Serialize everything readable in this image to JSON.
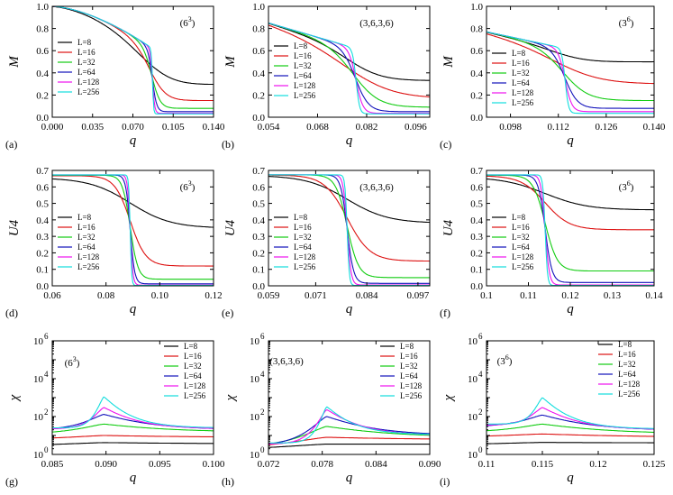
{
  "colors": {
    "L=8": "#000000",
    "L=16": "#dd1111",
    "L=32": "#11cc11",
    "L=64": "#1111bb",
    "L=128": "#ee11ee",
    "L=256": "#11dddd"
  },
  "legend": [
    "L=8",
    "L=16",
    "L=32",
    "L=64",
    "L=128",
    "L=256"
  ],
  "chart_data": [
    {
      "id": "a",
      "type": "line",
      "lattice": "(6^3)",
      "lattice_base": "(6",
      "lattice_exp": "3",
      "lattice_close": ")",
      "panel_label": "(a)",
      "xlabel": "q",
      "ylabel": "M",
      "yscale": "linear",
      "xlim": [
        0,
        0.14
      ],
      "ylim": [
        0,
        1.0
      ],
      "xticks": [
        0,
        0.035,
        0.07,
        0.105,
        0.14
      ],
      "xticklabels": [
        "0.000",
        "0.035",
        "0.070",
        "0.105",
        "0.140"
      ],
      "yticks": [
        0,
        0.2,
        0.4,
        0.6,
        0.8,
        1.0
      ],
      "yticklabels": [
        "0.0",
        "0.2",
        "0.4",
        "0.6",
        "0.8",
        "1.0"
      ],
      "qc": 0.087,
      "curve_kind": "M",
      "a0": 1.0,
      "x0": 0.05,
      "a1": 0.88,
      "x1": 0.14,
      "tail": [
        0.3,
        0.15,
        0.08,
        0.05,
        0.035,
        0.03
      ]
    },
    {
      "id": "b",
      "type": "line",
      "lattice": "(3,6,3,6)",
      "panel_label": "(b)",
      "xlabel": "q",
      "ylabel": "M",
      "yscale": "linear",
      "xlim": [
        0.054,
        0.1
      ],
      "ylim": [
        0,
        1.0
      ],
      "xticks": [
        0.054,
        0.068,
        0.082,
        0.096
      ],
      "xticklabels": [
        "0.054",
        "0.068",
        "0.082",
        "0.096"
      ],
      "yticks": [
        0,
        0.2,
        0.4,
        0.6,
        0.8,
        1.0
      ],
      "yticklabels": [
        "0.0",
        "0.2",
        "0.4",
        "0.6",
        "0.8",
        "1.0"
      ],
      "qc": 0.079,
      "curve_kind": "M",
      "a0": 0.85,
      "x0": 0.054,
      "a1": 0.85,
      "x1": 0.1,
      "tail": [
        0.33,
        0.17,
        0.09,
        0.05,
        0.035,
        0.03
      ]
    },
    {
      "id": "c",
      "type": "line",
      "lattice": "(3^6)",
      "lattice_base": "(3",
      "lattice_exp": "6",
      "lattice_close": ")",
      "panel_label": "(c)",
      "xlabel": "q",
      "ylabel": "M",
      "yscale": "linear",
      "xlim": [
        0.091,
        0.14
      ],
      "ylim": [
        0,
        1.0
      ],
      "xticks": [
        0.098,
        0.112,
        0.126,
        0.14
      ],
      "xticklabels": [
        "0.098",
        "0.112",
        "0.126",
        "0.140"
      ],
      "yticks": [
        0,
        0.2,
        0.4,
        0.6,
        0.8,
        1.0
      ],
      "yticklabels": [
        "0.0",
        "0.2",
        "0.4",
        "0.6",
        "0.8",
        "1.0"
      ],
      "qc": 0.114,
      "curve_kind": "M",
      "a0": 0.77,
      "x0": 0.091,
      "a1": 0.77,
      "x1": 0.14,
      "tail": [
        0.5,
        0.3,
        0.15,
        0.08,
        0.05,
        0.035
      ]
    },
    {
      "id": "d",
      "type": "line",
      "lattice": "(6^3)",
      "lattice_base": "(6",
      "lattice_exp": "3",
      "lattice_close": ")",
      "panel_label": "(d)",
      "xlabel": "q",
      "ylabel": "U4",
      "yscale": "linear",
      "xlim": [
        0.06,
        0.12
      ],
      "ylim": [
        0,
        0.7
      ],
      "xticks": [
        0.06,
        0.08,
        0.1,
        0.12
      ],
      "xticklabels": [
        "0.06",
        "0.08",
        "0.10",
        "0.12"
      ],
      "yticks": [
        0,
        0.1,
        0.2,
        0.3,
        0.4,
        0.5,
        0.6,
        0.7
      ],
      "yticklabels": [
        "0.0",
        "0.1",
        "0.2",
        "0.3",
        "0.4",
        "0.5",
        "0.6",
        "0.7"
      ],
      "qc": 0.089,
      "cross": 0.61,
      "curve_kind": "U",
      "u0": [
        0.655,
        0.668,
        0.671,
        0.672,
        0.673,
        0.673
      ],
      "tail": [
        0.35,
        0.12,
        0.04,
        0.012,
        0.004,
        0.002
      ]
    },
    {
      "id": "e",
      "type": "line",
      "lattice": "(3,6,3,6)",
      "panel_label": "(e)",
      "xlabel": "q",
      "ylabel": "U4",
      "yscale": "linear",
      "xlim": [
        0.059,
        0.1
      ],
      "ylim": [
        0,
        0.7
      ],
      "xticks": [
        0.059,
        0.071,
        0.084,
        0.097
      ],
      "xticklabels": [
        "0.059",
        "0.071",
        "0.084",
        "0.097"
      ],
      "yticks": [
        0,
        0.1,
        0.2,
        0.3,
        0.4,
        0.5,
        0.6,
        0.7
      ],
      "yticklabels": [
        "0.0",
        "0.1",
        "0.2",
        "0.3",
        "0.4",
        "0.5",
        "0.6",
        "0.7"
      ],
      "qc": 0.079,
      "cross": 0.65,
      "curve_kind": "U",
      "u0": [
        0.67,
        0.672,
        0.673,
        0.673,
        0.673,
        0.673
      ],
      "tail": [
        0.38,
        0.15,
        0.05,
        0.015,
        0.005,
        0.002
      ]
    },
    {
      "id": "f",
      "type": "line",
      "lattice": "(3^6)",
      "lattice_base": "(3",
      "lattice_exp": "6",
      "lattice_close": ")",
      "panel_label": "(f)",
      "xlabel": "q",
      "ylabel": "U4",
      "yscale": "linear",
      "xlim": [
        0.1,
        0.14
      ],
      "ylim": [
        0,
        0.7
      ],
      "xticks": [
        0.1,
        0.11,
        0.12,
        0.13,
        0.14
      ],
      "xticklabels": [
        "0.1",
        "0.11",
        "0.12",
        "0.13",
        "0.14"
      ],
      "yticks": [
        0,
        0.1,
        0.2,
        0.3,
        0.4,
        0.5,
        0.6,
        0.7
      ],
      "yticklabels": [
        "0.0",
        "0.1",
        "0.2",
        "0.3",
        "0.4",
        "0.5",
        "0.6",
        "0.7"
      ],
      "qc": 0.114,
      "cross": 0.63,
      "curve_kind": "U",
      "u0": [
        0.66,
        0.668,
        0.671,
        0.672,
        0.673,
        0.673
      ],
      "tail": [
        0.46,
        0.34,
        0.09,
        0.02,
        0.005,
        0.002
      ]
    },
    {
      "id": "g",
      "type": "line",
      "lattice": "(6^3)",
      "lattice_base": "(6",
      "lattice_exp": "3",
      "lattice_close": ")",
      "panel_label": "(g)",
      "xlabel": "q",
      "ylabel": "χ",
      "yscale": "log",
      "xlim": [
        0.085,
        0.1
      ],
      "ylim_exp": [
        0,
        6
      ],
      "xticks": [
        0.085,
        0.09,
        0.095,
        0.1
      ],
      "xticklabels": [
        "0.085",
        "0.090",
        "0.095",
        "0.100"
      ],
      "ytick_exps": [
        0,
        2,
        4,
        6
      ],
      "yticklabels": [
        "10",
        "10",
        "10",
        "10"
      ],
      "ytick_supers": [
        "0",
        "2",
        "4",
        "6"
      ],
      "qc": 0.0898,
      "curve_kind": "chi",
      "peaks": [
        4.2,
        10,
        40,
        130,
        300,
        1100
      ],
      "edge": [
        2.5,
        6,
        12,
        20,
        22,
        25
      ],
      "edgeR": [
        3.5,
        8,
        15,
        20,
        22,
        25
      ]
    },
    {
      "id": "h",
      "type": "line",
      "lattice": "(3,6,3,6)",
      "panel_label": "(h)",
      "xlabel": "q",
      "ylabel": "χ",
      "yscale": "log",
      "xlim": [
        0.072,
        0.09
      ],
      "ylim_exp": [
        0,
        6
      ],
      "xticks": [
        0.072,
        0.078,
        0.084,
        0.09
      ],
      "xticklabels": [
        "0.072",
        "0.078",
        "0.084",
        "0.090"
      ],
      "ytick_exps": [
        0,
        2,
        4,
        6
      ],
      "yticklabels": [
        "10",
        "10",
        "10",
        "10"
      ],
      "ytick_supers": [
        "0",
        "2",
        "4",
        "6"
      ],
      "qc": 0.0785,
      "curve_kind": "chi",
      "peaks": [
        3.5,
        8,
        30,
        100,
        230,
        330
      ],
      "edge": [
        1.5,
        2,
        2.5,
        3,
        3.5,
        4
      ],
      "edgeR": [
        3.5,
        6,
        8,
        10,
        10,
        11
      ]
    },
    {
      "id": "i",
      "type": "line",
      "lattice": "(3^6)",
      "lattice_base": "(3",
      "lattice_exp": "6",
      "lattice_close": ")",
      "panel_label": "(i)",
      "xlabel": "q",
      "ylabel": "χ",
      "yscale": "log",
      "xlim": [
        0.11,
        0.125
      ],
      "ylim_exp": [
        0,
        6
      ],
      "xticks": [
        0.11,
        0.115,
        0.12,
        0.125
      ],
      "xticklabels": [
        "0.11",
        "0.115",
        "0.12",
        "0.125"
      ],
      "ytick_exps": [
        0,
        2,
        4,
        6
      ],
      "yticklabels": [
        "10",
        "10",
        "10",
        "10"
      ],
      "ytick_supers": [
        "0",
        "2",
        "4",
        "6"
      ],
      "qc": 0.115,
      "curve_kind": "chi",
      "peaks": [
        4.3,
        12,
        40,
        120,
        300,
        1000
      ],
      "edge": [
        3,
        8,
        15,
        30,
        35,
        40
      ],
      "edgeR": [
        4,
        8,
        12,
        18,
        20,
        22
      ]
    }
  ]
}
